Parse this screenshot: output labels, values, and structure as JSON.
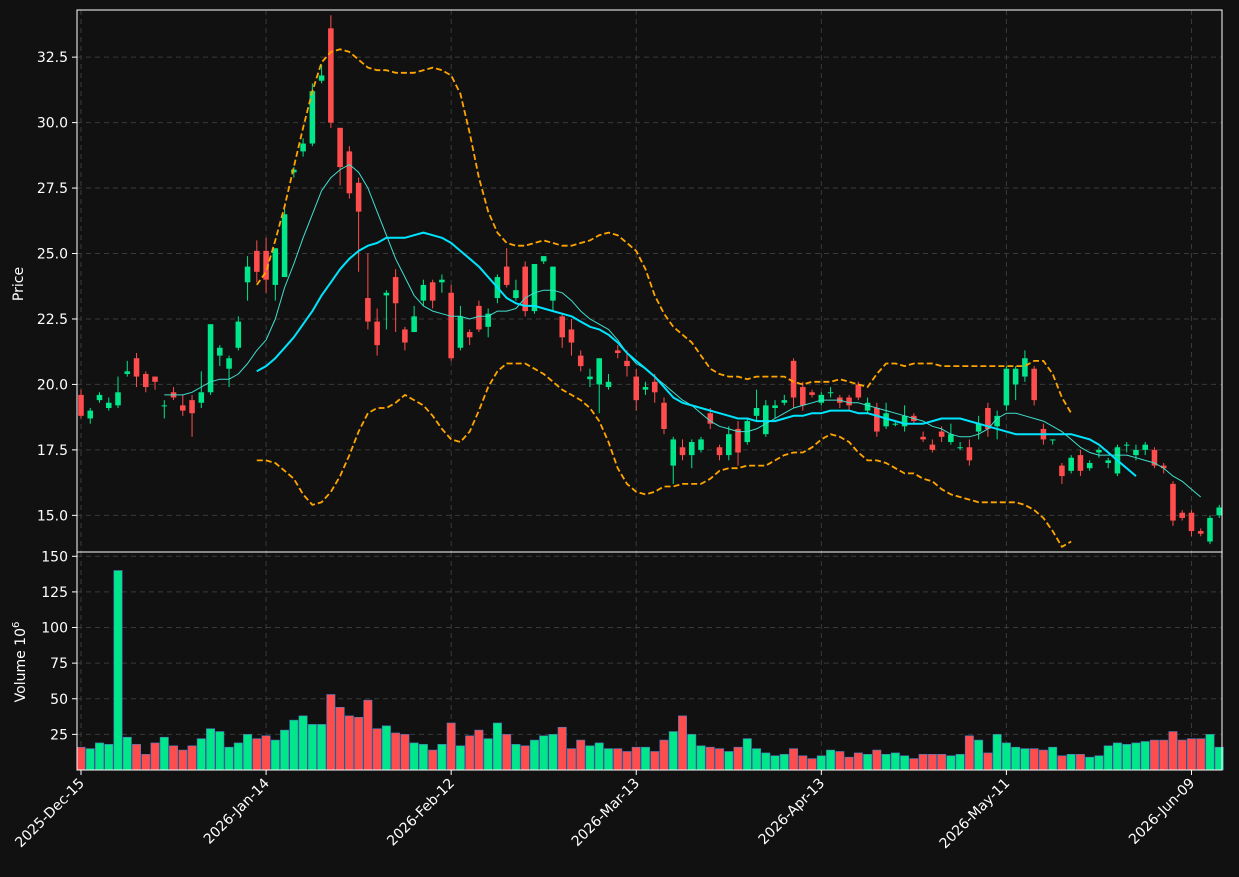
{
  "chart_data": {
    "type": "candlestick",
    "colors": {
      "background": "#111111",
      "up": "#00e68a",
      "down": "#ff4d4d",
      "sma_short": "#40e0d0",
      "sma_long": "#00e5ff",
      "bollinger": "#ffa500",
      "grid": "#3a3a3a",
      "frame": "#ffffff",
      "volume_edge": "#4a7abf"
    },
    "x_ticks": [
      "2025-Dec-15",
      "2026-Jan-14",
      "2026-Feb-12",
      "2026-Mar-13",
      "2026-Apr-13",
      "2026-May-11",
      "2026-Jun-09"
    ],
    "x_tick_indices": [
      0,
      20,
      40,
      60,
      80,
      100,
      120
    ],
    "price_panel": {
      "ylabel": "Price",
      "ylim": [
        13.6,
        34.3
      ],
      "yticks": [
        "15.0",
        "17.5",
        "20.0",
        "22.5",
        "25.0",
        "27.5",
        "30.0",
        "32.5"
      ],
      "candles": [
        [
          19.6,
          18.8,
          19.8,
          18.7
        ],
        [
          18.7,
          19.0,
          19.1,
          18.5
        ],
        [
          19.4,
          19.6,
          19.7,
          19.3
        ],
        [
          19.1,
          19.3,
          19.5,
          19.0
        ],
        [
          19.2,
          19.7,
          20.3,
          19.1
        ],
        [
          20.4,
          20.5,
          20.9,
          20.3
        ],
        [
          21.0,
          20.3,
          21.2,
          19.9
        ],
        [
          20.4,
          19.9,
          20.5,
          19.7
        ],
        [
          20.3,
          20.1,
          20.3,
          19.8
        ],
        [
          19.2,
          19.2,
          19.4,
          18.7
        ],
        [
          19.7,
          19.5,
          19.9,
          19.4
        ],
        [
          19.2,
          19.0,
          19.6,
          18.8
        ],
        [
          19.4,
          18.9,
          19.6,
          18.0
        ],
        [
          19.3,
          19.7,
          20.5,
          19.1
        ],
        [
          19.7,
          22.3,
          22.3,
          19.6
        ],
        [
          21.1,
          21.4,
          21.5,
          20.7
        ],
        [
          20.6,
          21.0,
          21.1,
          19.9
        ],
        [
          21.4,
          22.4,
          22.6,
          21.3
        ],
        [
          23.9,
          24.5,
          24.9,
          23.2
        ],
        [
          25.1,
          24.3,
          25.5,
          23.9
        ],
        [
          25.1,
          24.0,
          25.6,
          23.5
        ],
        [
          23.8,
          25.2,
          25.2,
          23.2
        ],
        [
          24.1,
          26.5,
          26.7,
          24.1
        ],
        [
          28.1,
          28.2,
          28.3,
          27.9
        ],
        [
          28.9,
          29.2,
          29.4,
          28.7
        ],
        [
          29.2,
          31.2,
          31.5,
          29.1
        ],
        [
          31.6,
          31.8,
          32.2,
          31.5
        ],
        [
          33.6,
          30.0,
          34.1,
          29.8
        ],
        [
          29.8,
          28.3,
          29.8,
          27.6
        ],
        [
          28.9,
          27.3,
          29.1,
          27.1
        ],
        [
          27.7,
          26.6,
          27.9,
          24.3
        ],
        [
          23.3,
          22.4,
          25.0,
          22.1
        ],
        [
          22.4,
          21.5,
          22.9,
          21.1
        ],
        [
          23.4,
          23.5,
          23.6,
          22.1
        ],
        [
          24.1,
          23.1,
          24.4,
          22.0
        ],
        [
          22.1,
          21.6,
          22.2,
          21.3
        ],
        [
          22.0,
          22.6,
          23.0,
          22.1
        ],
        [
          23.2,
          23.8,
          24.0,
          23.0
        ],
        [
          23.9,
          23.2,
          24.0,
          22.9
        ],
        [
          23.9,
          24.0,
          24.2,
          23.5
        ],
        [
          23.5,
          21.0,
          23.8,
          20.9
        ],
        [
          21.4,
          22.6,
          23.0,
          21.3
        ],
        [
          22.0,
          21.8,
          22.1,
          21.5
        ],
        [
          23.0,
          22.1,
          23.2,
          22.0
        ],
        [
          22.2,
          22.7,
          22.9,
          21.8
        ],
        [
          23.3,
          24.1,
          24.2,
          23.1
        ],
        [
          24.5,
          23.8,
          25.2,
          23.7
        ],
        [
          23.3,
          23.6,
          24.0,
          23.2
        ],
        [
          24.5,
          22.8,
          24.7,
          22.6
        ],
        [
          22.8,
          24.6,
          24.6,
          22.7
        ],
        [
          24.7,
          24.9,
          24.9,
          24.6
        ],
        [
          23.2,
          24.5,
          24.5,
          22.8
        ],
        [
          22.6,
          21.8,
          22.7,
          21.4
        ],
        [
          22.1,
          21.6,
          22.5,
          21.1
        ],
        [
          21.1,
          20.7,
          21.3,
          20.5
        ],
        [
          20.2,
          20.3,
          20.6,
          19.9
        ],
        [
          20.0,
          21.0,
          21.0,
          18.9
        ],
        [
          19.9,
          20.1,
          20.4,
          19.8
        ],
        [
          21.3,
          21.2,
          21.5,
          21.0
        ],
        [
          20.9,
          20.7,
          21.3,
          20.3
        ],
        [
          20.3,
          19.4,
          20.6,
          19.0
        ],
        [
          19.8,
          19.9,
          20.1,
          19.6
        ],
        [
          20.1,
          19.7,
          20.4,
          19.3
        ],
        [
          19.3,
          18.3,
          19.5,
          18.1
        ],
        [
          16.9,
          17.9,
          18.0,
          16.2
        ],
        [
          17.6,
          17.3,
          17.9,
          17.1
        ],
        [
          17.3,
          17.8,
          17.9,
          16.8
        ],
        [
          17.5,
          17.9,
          18.0,
          17.4
        ],
        [
          18.9,
          18.5,
          19.1,
          18.3
        ],
        [
          17.6,
          17.3,
          17.7,
          17.1
        ],
        [
          17.3,
          18.1,
          18.4,
          17.1
        ],
        [
          18.3,
          17.4,
          18.6,
          16.9
        ],
        [
          17.8,
          18.6,
          18.7,
          17.7
        ],
        [
          18.8,
          19.1,
          19.8,
          18.6
        ],
        [
          18.1,
          19.2,
          19.4,
          18.0
        ],
        [
          19.1,
          19.2,
          19.4,
          18.7
        ],
        [
          19.3,
          19.4,
          19.6,
          19.2
        ],
        [
          20.9,
          19.5,
          21.0,
          19.1
        ],
        [
          19.9,
          19.2,
          20.1,
          19.0
        ],
        [
          19.7,
          19.6,
          19.8,
          19.5
        ],
        [
          19.3,
          19.6,
          19.7,
          19.2
        ],
        [
          19.7,
          19.7,
          19.9,
          19.5
        ],
        [
          19.5,
          19.3,
          19.6,
          19.1
        ],
        [
          19.5,
          19.2,
          19.6,
          19.0
        ],
        [
          20.0,
          19.5,
          20.1,
          19.4
        ],
        [
          19.0,
          19.3,
          19.5,
          18.9
        ],
        [
          19.1,
          18.2,
          19.3,
          18.0
        ],
        [
          18.4,
          18.9,
          19.3,
          18.3
        ],
        [
          18.5,
          18.5,
          18.6,
          18.4
        ],
        [
          18.4,
          18.8,
          19.2,
          18.2
        ],
        [
          18.8,
          18.6,
          18.9,
          18.5
        ],
        [
          18.0,
          17.9,
          18.2,
          17.8
        ],
        [
          17.7,
          17.5,
          17.9,
          17.4
        ],
        [
          18.2,
          18.0,
          18.4,
          17.8
        ],
        [
          17.8,
          18.1,
          18.5,
          17.7
        ],
        [
          17.6,
          17.6,
          17.8,
          17.5
        ],
        [
          17.6,
          17.1,
          17.9,
          16.9
        ],
        [
          18.2,
          18.5,
          18.8,
          17.9
        ],
        [
          19.1,
          18.3,
          19.3,
          18.0
        ],
        [
          18.4,
          18.8,
          19.0,
          17.9
        ],
        [
          19.2,
          20.6,
          20.7,
          19.0
        ],
        [
          20.0,
          20.6,
          20.7,
          19.4
        ],
        [
          20.3,
          21.0,
          21.3,
          20.1
        ],
        [
          20.6,
          19.4,
          20.7,
          19.2
        ],
        [
          18.3,
          17.9,
          18.5,
          17.7
        ],
        [
          17.9,
          17.9,
          17.9,
          17.7
        ],
        [
          16.9,
          16.5,
          17.0,
          16.2
        ],
        [
          16.7,
          17.2,
          17.3,
          16.6
        ],
        [
          17.3,
          16.7,
          17.5,
          16.5
        ],
        [
          16.8,
          17.0,
          17.1,
          16.7
        ],
        [
          17.4,
          17.5,
          17.6,
          17.2
        ],
        [
          17.0,
          17.1,
          17.2,
          16.8
        ],
        [
          16.6,
          17.6,
          17.7,
          16.5
        ],
        [
          17.7,
          17.7,
          17.8,
          17.4
        ],
        [
          17.3,
          17.5,
          17.7,
          17.1
        ],
        [
          17.5,
          17.7,
          17.8,
          17.3
        ],
        [
          17.5,
          16.9,
          17.6,
          16.8
        ],
        [
          16.9,
          16.8,
          17.0,
          16.6
        ],
        [
          16.2,
          14.8,
          16.3,
          14.6
        ],
        [
          15.1,
          14.9,
          15.2,
          14.8
        ],
        [
          15.1,
          14.4,
          15.2,
          14.2
        ],
        [
          14.4,
          14.3,
          14.5,
          14.2
        ],
        [
          14.0,
          14.9,
          15.0,
          13.9
        ],
        [
          15.0,
          15.3,
          15.4,
          14.9
        ]
      ],
      "sma_short": {
        "start": 9,
        "values": [
          19.6,
          19.6,
          19.6,
          19.7,
          19.9,
          20.1,
          20.2,
          20.2,
          20.4,
          20.8,
          21.3,
          21.7,
          22.5,
          23.7,
          24.6,
          25.6,
          26.5,
          27.4,
          27.9,
          28.2,
          28.4,
          28.1,
          27.5,
          26.6,
          25.7,
          24.8,
          24.1,
          23.4,
          23.0,
          22.8,
          22.7,
          22.6,
          22.6,
          22.5,
          22.6,
          22.6,
          22.8,
          22.8,
          22.9,
          23.3,
          23.5,
          23.6,
          23.6,
          23.5,
          23.2,
          22.8,
          22.5,
          22.3,
          22.1,
          21.7,
          21.2,
          20.8,
          20.6,
          20.3,
          20.0,
          19.7,
          19.4,
          19.2,
          18.9,
          18.6,
          18.4,
          18.3,
          18.2,
          18.2,
          18.3,
          18.5,
          18.7,
          18.9,
          19.1,
          19.2,
          19.3,
          19.4,
          19.4,
          19.4,
          19.3,
          19.3,
          19.2,
          19.1,
          19.0,
          18.9,
          18.8,
          18.7,
          18.6,
          18.4,
          18.3,
          18.1,
          18.0,
          18.0,
          18.1,
          18.3,
          18.7,
          18.9,
          18.9,
          18.8,
          18.7,
          18.6,
          18.4,
          18.2,
          17.9,
          17.6,
          17.4,
          17.3,
          17.3,
          17.3,
          17.3,
          17.2,
          17.1,
          17.0,
          16.8,
          16.5,
          16.3,
          16.0,
          15.7
        ]
      },
      "sma_long": {
        "start": 19,
        "values": [
          20.5,
          20.7,
          21.0,
          21.4,
          21.8,
          22.3,
          22.8,
          23.4,
          23.9,
          24.4,
          24.8,
          25.1,
          25.3,
          25.4,
          25.6,
          25.6,
          25.6,
          25.7,
          25.8,
          25.7,
          25.6,
          25.4,
          25.1,
          24.8,
          24.5,
          24.1,
          23.7,
          23.3,
          23.1,
          23.0,
          23.0,
          22.9,
          22.8,
          22.7,
          22.6,
          22.4,
          22.2,
          22.1,
          21.9,
          21.6,
          21.2,
          20.9,
          20.6,
          20.3,
          19.9,
          19.5,
          19.3,
          19.2,
          19.1,
          19.0,
          18.9,
          18.8,
          18.7,
          18.7,
          18.6,
          18.6,
          18.6,
          18.7,
          18.8,
          18.8,
          18.9,
          18.9,
          19.0,
          19.0,
          19.0,
          18.9,
          18.9,
          18.8,
          18.7,
          18.6,
          18.5,
          18.5,
          18.5,
          18.6,
          18.7,
          18.7,
          18.7,
          18.6,
          18.5,
          18.4,
          18.3,
          18.2,
          18.1,
          18.1,
          18.1,
          18.1,
          18.1,
          18.1,
          18.1,
          18.0,
          17.9,
          17.7,
          17.4,
          17.1,
          16.8,
          16.5
        ]
      },
      "bb_upper": {
        "start": 19,
        "values": [
          23.8,
          24.3,
          25.5,
          26.8,
          28.3,
          29.8,
          31.2,
          32.3,
          32.7,
          32.8,
          32.7,
          32.4,
          32.1,
          32.0,
          32.0,
          31.9,
          31.9,
          31.9,
          32.0,
          32.1,
          32.0,
          31.8,
          31.1,
          29.6,
          27.9,
          26.6,
          25.8,
          25.4,
          25.3,
          25.3,
          25.4,
          25.5,
          25.4,
          25.3,
          25.3,
          25.4,
          25.5,
          25.7,
          25.8,
          25.7,
          25.4,
          25.1,
          24.4,
          23.4,
          22.7,
          22.2,
          21.9,
          21.6,
          21.1,
          20.6,
          20.4,
          20.3,
          20.3,
          20.2,
          20.3,
          20.3,
          20.3,
          20.3,
          20.1,
          20.0,
          20.1,
          20.1,
          20.1,
          20.2,
          20.1,
          20.0,
          19.9,
          20.4,
          20.8,
          20.8,
          20.7,
          20.8,
          20.8,
          20.8,
          20.7,
          20.7,
          20.7,
          20.7,
          20.7,
          20.7,
          20.7,
          20.7,
          20.7,
          20.7,
          20.9,
          20.9,
          20.4,
          19.5,
          18.9
        ]
      },
      "bb_lower": {
        "start": 19,
        "values": [
          17.1,
          17.1,
          17.0,
          16.7,
          16.4,
          15.8,
          15.4,
          15.5,
          15.9,
          16.5,
          17.3,
          18.2,
          18.9,
          19.1,
          19.1,
          19.3,
          19.6,
          19.4,
          19.2,
          18.8,
          18.3,
          17.9,
          17.8,
          18.2,
          19.0,
          19.9,
          20.5,
          20.8,
          20.8,
          20.8,
          20.6,
          20.4,
          20.1,
          19.8,
          19.6,
          19.4,
          19.1,
          18.6,
          17.8,
          16.8,
          16.2,
          15.9,
          15.8,
          15.9,
          16.1,
          16.1,
          16.2,
          16.2,
          16.2,
          16.4,
          16.7,
          16.8,
          16.8,
          16.9,
          16.9,
          16.9,
          17.1,
          17.3,
          17.4,
          17.4,
          17.6,
          17.9,
          18.1,
          18.0,
          17.8,
          17.4,
          17.1,
          17.1,
          17.0,
          16.8,
          16.6,
          16.6,
          16.4,
          16.3,
          16.0,
          15.8,
          15.7,
          15.6,
          15.5,
          15.5,
          15.5,
          15.5,
          15.5,
          15.4,
          15.2,
          14.9,
          14.4,
          13.8,
          14.0
        ]
      }
    },
    "volume_panel": {
      "ylabel": "Volume  10",
      "ylabel_exponent": "6",
      "ylim": [
        0,
        153
      ],
      "yticks": [
        "25",
        "50",
        "75",
        "100",
        "125",
        "150"
      ],
      "values": [
        16,
        15,
        19,
        18,
        140,
        23,
        18,
        11,
        19,
        23,
        17,
        14,
        17,
        22,
        29,
        27,
        16,
        19,
        25,
        22,
        24,
        21,
        28,
        35,
        38,
        32,
        32,
        53,
        44,
        38,
        37,
        49,
        29,
        31,
        26,
        25,
        19,
        18,
        14,
        18,
        33,
        17,
        24,
        28,
        22,
        33,
        25,
        18,
        17,
        21,
        24,
        25,
        30,
        15,
        21,
        17,
        19,
        15,
        15,
        13,
        16,
        16,
        13,
        21,
        27,
        38,
        25,
        17,
        16,
        15,
        13,
        16,
        22,
        15,
        12,
        10,
        11,
        15,
        10,
        8,
        10,
        14,
        13,
        9,
        12,
        11,
        14,
        11,
        12,
        10,
        8,
        11,
        11,
        11,
        10,
        11,
        24,
        21,
        12,
        25,
        19,
        16,
        15,
        15,
        14,
        16,
        10,
        11,
        11,
        9,
        10,
        17,
        19,
        18,
        19,
        20,
        21,
        21,
        27,
        21,
        22,
        22,
        25,
        16
      ]
    }
  }
}
